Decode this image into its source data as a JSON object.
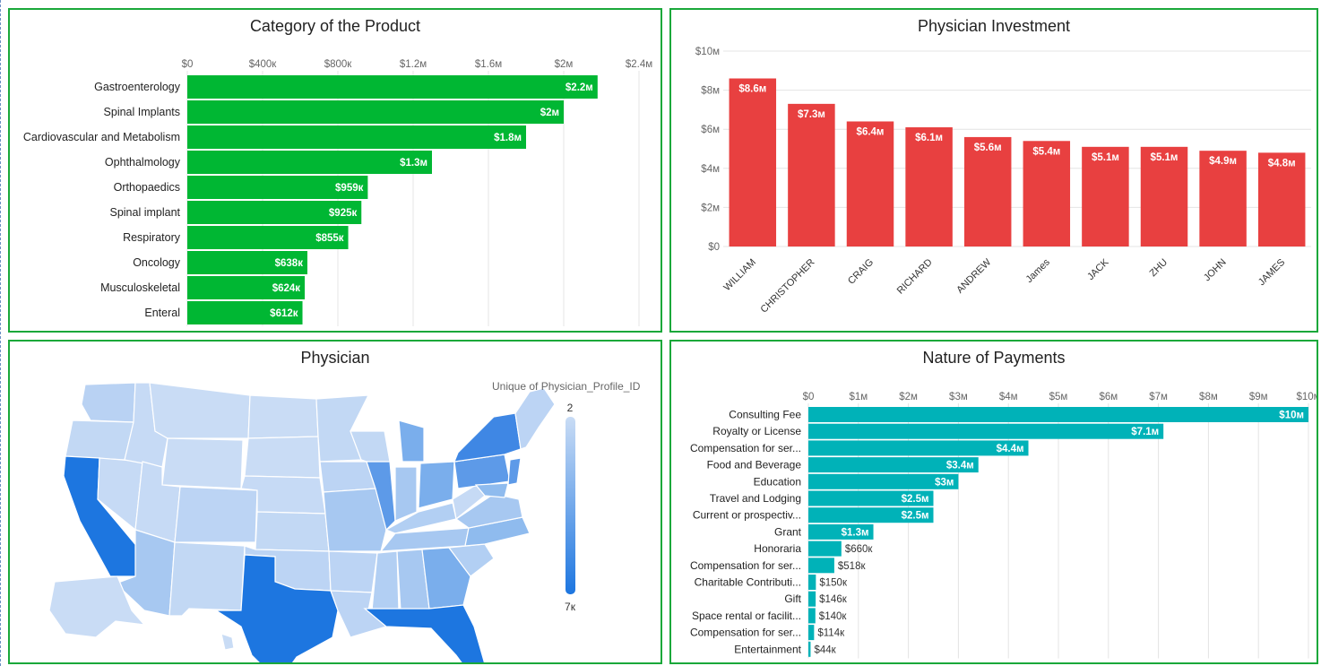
{
  "panels": {
    "category": {
      "title": "Category of the Product"
    },
    "investment": {
      "title": "Physician Investment"
    },
    "physician": {
      "title": "Physician"
    },
    "payments": {
      "title": "Nature of Payments"
    }
  },
  "colors": {
    "category": "#00b733",
    "investment": "#e84040",
    "payments": "#00b2b8",
    "border": "#1aa83a",
    "map_low": "#c9dcf5",
    "map_high": "#1d76e0"
  },
  "chart_data": [
    {
      "id": "category",
      "type": "bar",
      "orientation": "horizontal",
      "title": "Category of the Product",
      "categories": [
        "Gastroenterology",
        "Spinal Implants",
        "Cardiovascular and Metabolism",
        "Ophthalmology",
        "Orthopaedics",
        "Spinal implant",
        "Respiratory",
        "Oncology",
        "Musculoskeletal",
        "Enteral"
      ],
      "values": [
        2180000,
        2000000,
        1800000,
        1300000,
        959000,
        925000,
        855000,
        638000,
        624000,
        612000
      ],
      "value_labels": [
        "$2.2м",
        "$2м",
        "$1.8м",
        "$1.3м",
        "$959к",
        "$925к",
        "$855к",
        "$638к",
        "$624к",
        "$612к"
      ],
      "xlim": [
        0,
        2400000
      ],
      "ticks": [
        0,
        400000,
        800000,
        1200000,
        1600000,
        2000000,
        2400000
      ],
      "tick_labels": [
        "$0",
        "$400к",
        "$800к",
        "$1.2м",
        "$1.6м",
        "$2м",
        "$2.4м"
      ],
      "axis_position": "top",
      "grid": true
    },
    {
      "id": "investment",
      "type": "bar",
      "orientation": "vertical",
      "title": "Physician Investment",
      "categories": [
        "WILLIAM",
        "CHRISTOPHER",
        "CRAIG",
        "RICHARD",
        "ANDREW",
        "James",
        "JACK",
        "ZHU",
        "JOHN",
        "JAMES"
      ],
      "values": [
        8600000,
        7300000,
        6400000,
        6100000,
        5600000,
        5400000,
        5100000,
        5100000,
        4900000,
        4800000
      ],
      "value_labels": [
        "$8.6м",
        "$7.3м",
        "$6.4м",
        "$6.1м",
        "$5.6м",
        "$5.4м",
        "$5.1м",
        "$5.1м",
        "$4.9м",
        "$4.8м"
      ],
      "ylim": [
        0,
        10000000
      ],
      "ticks": [
        0,
        2000000,
        4000000,
        6000000,
        8000000,
        10000000
      ],
      "tick_labels": [
        "$0",
        "$2м",
        "$4м",
        "$6м",
        "$8м",
        "$10м"
      ],
      "grid": true
    },
    {
      "id": "physician",
      "type": "map",
      "title": "Physician",
      "legend": {
        "title": "Unique of Physician_Profile_ID",
        "min_label": "2",
        "max_label": "7к",
        "min": 2,
        "max": 7000,
        "placement": "right"
      },
      "regions": [
        {
          "name": "California",
          "level": 0.95
        },
        {
          "name": "Texas",
          "level": 0.9
        },
        {
          "name": "Florida",
          "level": 0.88
        },
        {
          "name": "New York",
          "level": 0.72
        },
        {
          "name": "Pennsylvania",
          "level": 0.55
        },
        {
          "name": "Illinois",
          "level": 0.6
        },
        {
          "name": "Ohio",
          "level": 0.5
        },
        {
          "name": "New Jersey",
          "level": 0.52
        },
        {
          "name": "Michigan",
          "level": 0.45
        },
        {
          "name": "Georgia",
          "level": 0.45
        }
      ]
    },
    {
      "id": "payments",
      "type": "bar",
      "orientation": "horizontal",
      "title": "Nature of Payments",
      "categories": [
        "Consulting Fee",
        "Royalty or License",
        "Compensation for ser...",
        "Food and Beverage",
        "Education",
        "Travel and Lodging",
        "Current or prospectiv...",
        "Grant",
        "Honoraria",
        "Compensation for ser...",
        "Charitable Contributi...",
        "Gift",
        "Space rental or facilit...",
        "Compensation for ser...",
        "Entertainment"
      ],
      "values": [
        10000000,
        7100000,
        4400000,
        3400000,
        3000000,
        2500000,
        2500000,
        1300000,
        660000,
        518000,
        150000,
        146000,
        140000,
        114000,
        44000
      ],
      "value_labels": [
        "$10м",
        "$7.1м",
        "$4.4м",
        "$3.4м",
        "$3м",
        "$2.5м",
        "$2.5м",
        "$1.3м",
        "$660к",
        "$518к",
        "$150к",
        "$146к",
        "$140к",
        "$114к",
        "$44к"
      ],
      "xlim": [
        0,
        10000000
      ],
      "ticks": [
        0,
        1000000,
        2000000,
        3000000,
        4000000,
        5000000,
        6000000,
        7000000,
        8000000,
        9000000,
        10000000
      ],
      "tick_labels": [
        "$0",
        "$1м",
        "$2м",
        "$3м",
        "$4м",
        "$5м",
        "$6м",
        "$7м",
        "$8м",
        "$9м",
        "$10м"
      ],
      "axis_position": "top",
      "grid": true
    }
  ]
}
